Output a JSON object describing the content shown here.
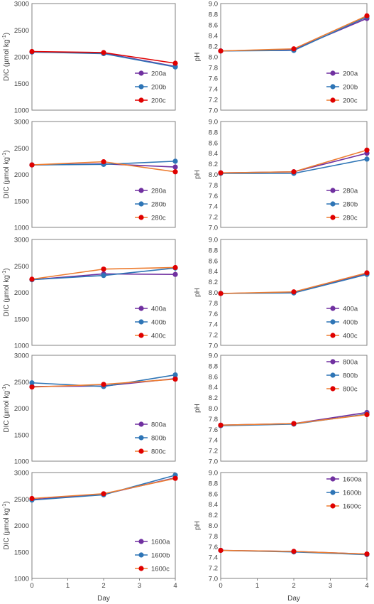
{
  "colors": {
    "series_a": "#7030A0",
    "series_b": "#2E75B6",
    "series_c": "#E00000",
    "line_orange": "#ED7D31",
    "axis": "#808080"
  },
  "x_axis": {
    "label": "Day",
    "ticks": [
      "0",
      "1",
      "2",
      "3",
      "4"
    ]
  },
  "dic_axis": {
    "label_main": "DIC (µmol kg",
    "label_sup": "-1",
    "label_end": ")"
  },
  "ph_axis": {
    "label": "pH"
  },
  "chart_data": [
    {
      "id": "dic-200",
      "type": "line",
      "ylabel": "DIC (µmol kg-1)",
      "ylim": [
        1000,
        3000
      ],
      "yticks": [
        "1000",
        "1500",
        "2000",
        "2500",
        "3000"
      ],
      "x": [
        0,
        2,
        4
      ],
      "legend_position": "bottom-right",
      "series": [
        {
          "name": "200a",
          "values": [
            2090,
            2070,
            1820
          ]
        },
        {
          "name": "200b",
          "values": [
            2090,
            2060,
            1810
          ]
        },
        {
          "name": "200c",
          "values": [
            2100,
            2080,
            1880
          ]
        }
      ]
    },
    {
      "id": "ph-200",
      "type": "line",
      "ylabel": "pH",
      "ylim": [
        7.0,
        9.0
      ],
      "yticks": [
        "7.0",
        "7.2",
        "7.4",
        "7.6",
        "7.8",
        "8.0",
        "8.2",
        "8.4",
        "8.6",
        "8.8",
        "9.0"
      ],
      "x": [
        0,
        2,
        4
      ],
      "legend_position": "bottom-right",
      "series": [
        {
          "name": "200a",
          "values": [
            8.11,
            8.14,
            8.72
          ]
        },
        {
          "name": "200b",
          "values": [
            8.11,
            8.12,
            8.75
          ]
        },
        {
          "name": "200c",
          "values": [
            8.11,
            8.15,
            8.77
          ]
        }
      ]
    },
    {
      "id": "dic-280",
      "type": "line",
      "ylabel": "DIC (µmol kg-1)",
      "ylim": [
        1000,
        3000
      ],
      "yticks": [
        "1000",
        "1500",
        "2000",
        "2500",
        "3000"
      ],
      "x": [
        0,
        2,
        4
      ],
      "legend_position": "bottom-right",
      "series": [
        {
          "name": "280a",
          "values": [
            2180,
            2200,
            2140
          ]
        },
        {
          "name": "280b",
          "values": [
            2180,
            2190,
            2250
          ]
        },
        {
          "name": "280c",
          "values": [
            2180,
            2240,
            2050
          ]
        }
      ]
    },
    {
      "id": "ph-280",
      "type": "line",
      "ylabel": "pH",
      "ylim": [
        7.0,
        9.0
      ],
      "yticks": [
        "7.0",
        "7.2",
        "7.4",
        "7.6",
        "7.8",
        "8.0",
        "8.2",
        "8.4",
        "8.6",
        "8.8",
        "9.0"
      ],
      "x": [
        0,
        2,
        4
      ],
      "legend_position": "bottom-right",
      "series": [
        {
          "name": "280a",
          "values": [
            8.03,
            8.05,
            8.4
          ]
        },
        {
          "name": "280b",
          "values": [
            8.02,
            8.02,
            8.29
          ]
        },
        {
          "name": "280c",
          "values": [
            8.03,
            8.05,
            8.46
          ]
        }
      ]
    },
    {
      "id": "dic-400",
      "type": "line",
      "ylabel": "DIC (µmol kg-1)",
      "ylim": [
        1000,
        3000
      ],
      "yticks": [
        "1000",
        "1500",
        "2000",
        "2500",
        "3000"
      ],
      "x": [
        0,
        2,
        4
      ],
      "legend_position": "bottom-right",
      "series": [
        {
          "name": "400a",
          "values": [
            2240,
            2350,
            2340
          ]
        },
        {
          "name": "400b",
          "values": [
            2240,
            2320,
            2460
          ]
        },
        {
          "name": "400c",
          "values": [
            2250,
            2440,
            2470
          ]
        }
      ]
    },
    {
      "id": "ph-400",
      "type": "line",
      "ylabel": "pH",
      "ylim": [
        7.0,
        9.0
      ],
      "yticks": [
        "7.0",
        "7.2",
        "7.4",
        "7.6",
        "7.8",
        "8.0",
        "8.2",
        "8.4",
        "8.6",
        "8.8",
        "9.0"
      ],
      "x": [
        0,
        2,
        4
      ],
      "legend_position": "bottom-right",
      "series": [
        {
          "name": "400a",
          "values": [
            7.98,
            8.0,
            8.36
          ]
        },
        {
          "name": "400b",
          "values": [
            7.98,
            7.99,
            8.34
          ]
        },
        {
          "name": "400c",
          "values": [
            7.98,
            8.01,
            8.37
          ]
        }
      ]
    },
    {
      "id": "dic-800",
      "type": "line",
      "ylabel": "DIC (µmol kg-1)",
      "ylim": [
        1000,
        3000
      ],
      "yticks": [
        "1000",
        "1500",
        "2000",
        "2500",
        "3000"
      ],
      "x": [
        0,
        2,
        4
      ],
      "legend_position": "bottom-right",
      "series": [
        {
          "name": "800a",
          "values": [
            2410,
            2420,
            2560
          ]
        },
        {
          "name": "800b",
          "values": [
            2480,
            2410,
            2630
          ]
        },
        {
          "name": "800c",
          "values": [
            2400,
            2450,
            2550
          ]
        }
      ]
    },
    {
      "id": "ph-800",
      "type": "line",
      "ylabel": "pH",
      "ylim": [
        7.0,
        9.0
      ],
      "yticks": [
        "7.0",
        "7.2",
        "7.4",
        "7.6",
        "7.8",
        "8.0",
        "8.2",
        "8.4",
        "8.6",
        "8.8",
        "9.0"
      ],
      "x": [
        0,
        2,
        4
      ],
      "legend_position": "top-right",
      "series": [
        {
          "name": "800a",
          "values": [
            7.68,
            7.71,
            7.92
          ]
        },
        {
          "name": "800b",
          "values": [
            7.67,
            7.7,
            7.89
          ]
        },
        {
          "name": "800c",
          "values": [
            7.68,
            7.71,
            7.88
          ]
        }
      ]
    },
    {
      "id": "dic-1600",
      "type": "line",
      "ylabel": "DIC (µmol kg-1)",
      "ylim": [
        1000,
        3000
      ],
      "yticks": [
        "1000",
        "1500",
        "2000",
        "2500",
        "3000"
      ],
      "x": [
        0,
        2,
        4
      ],
      "legend_position": "bottom-right",
      "series": [
        {
          "name": "1600a",
          "values": [
            2490,
            2590,
            2900
          ]
        },
        {
          "name": "1600b",
          "values": [
            2480,
            2580,
            2950
          ]
        },
        {
          "name": "1600c",
          "values": [
            2510,
            2600,
            2890
          ]
        }
      ]
    },
    {
      "id": "ph-1600",
      "type": "line",
      "ylabel": "pH",
      "ylim": [
        7.0,
        9.0
      ],
      "yticks": [
        "7.0",
        "7.2",
        "7.4",
        "7.6",
        "7.8",
        "8.0",
        "8.2",
        "8.4",
        "8.6",
        "8.8",
        "9.0"
      ],
      "x": [
        0,
        2,
        4
      ],
      "legend_position": "top-right",
      "series": [
        {
          "name": "1600a",
          "values": [
            7.53,
            7.51,
            7.46
          ]
        },
        {
          "name": "1600b",
          "values": [
            7.53,
            7.5,
            7.45
          ]
        },
        {
          "name": "1600c",
          "values": [
            7.53,
            7.51,
            7.46
          ]
        }
      ]
    }
  ]
}
